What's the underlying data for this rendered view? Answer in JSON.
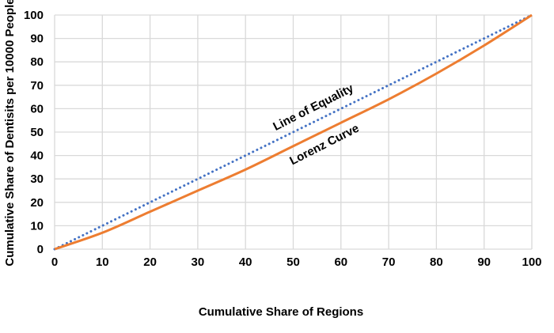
{
  "chart_data": {
    "type": "line",
    "title": "",
    "xlabel": "Cumulative Share of Regions",
    "ylabel": "Cumulative Share of Dentisits per 10000 People",
    "xlim": [
      0,
      100
    ],
    "ylim": [
      0,
      100
    ],
    "xticks": [
      0,
      10,
      20,
      30,
      40,
      50,
      60,
      70,
      80,
      90,
      100
    ],
    "yticks": [
      0,
      10,
      20,
      30,
      40,
      50,
      60,
      70,
      80,
      90,
      100
    ],
    "grid": true,
    "series": [
      {
        "name": "Line of Equality",
        "color": "#4472C4",
        "style": "dotted",
        "x": [
          0,
          100
        ],
        "y": [
          0,
          100
        ]
      },
      {
        "name": "Lorenz Curve",
        "color": "#ED7D31",
        "style": "solid",
        "x": [
          0,
          10,
          20,
          30,
          40,
          50,
          60,
          70,
          80,
          90,
          100
        ],
        "y": [
          0,
          7,
          16,
          25,
          34,
          44,
          54,
          64,
          75,
          87,
          100
        ]
      }
    ],
    "annotations": [
      "Line of Equality",
      "Lorenz Curve"
    ]
  }
}
